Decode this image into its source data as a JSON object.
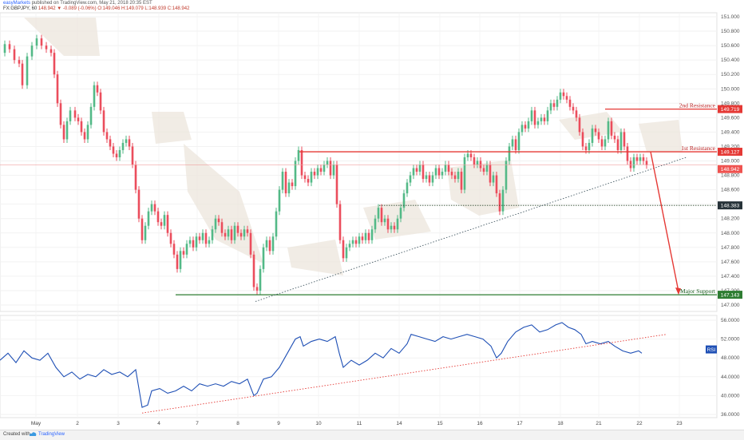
{
  "header": {
    "publisher_user": "easyMarkets",
    "publisher_rest": "published on TradingView.com, May 21, 2018 20:35 EST",
    "symbol": "FX:GBPJPY, 60",
    "last": "148.942",
    "change": "-0.089 (-0.06%)",
    "o": "O:149.046",
    "h": "H:149.079",
    "l": "L:148.939",
    "c": "C:148.942"
  },
  "price_axis": {
    "ticks": [
      "151.000",
      "150.800",
      "150.600",
      "150.400",
      "150.200",
      "150.000",
      "149.800",
      "149.600",
      "149.400",
      "149.200",
      "149.000",
      "148.800",
      "148.600",
      "148.400",
      "148.200",
      "148.000",
      "147.800",
      "147.600",
      "147.400",
      "147.200",
      "147.000"
    ]
  },
  "rsi_axis": {
    "ticks": [
      "56.0000",
      "52.0000",
      "48.0000",
      "44.0000",
      "40.0000",
      "36.0000"
    ]
  },
  "time_axis": {
    "ticks": [
      "May",
      "2",
      "3",
      "4",
      "7",
      "8",
      "9",
      "10",
      "11",
      "14",
      "15",
      "16",
      "17",
      "18",
      "21",
      "22",
      "23"
    ]
  },
  "price_labels": {
    "second_resistance": "149.719",
    "first_resistance": "149.127",
    "current": "148.942",
    "mid_level": "148.383",
    "major_support": "147.143"
  },
  "annotations": {
    "second_resistance": "2nd Resistance",
    "first_resistance": "1st Resistance",
    "major_support": "Major Support"
  },
  "rsi_badge": "RSI",
  "footer": {
    "created": "Created with",
    "brand": "TradingView"
  },
  "colors": {
    "up": "#53b987",
    "down": "#eb4d5c",
    "resistance": "#e53935",
    "support": "#2e7d32",
    "rsi": "#1e4fb5",
    "trend": "#455a64",
    "cloud": "#ece6dc"
  },
  "chart_data": {
    "type": "candlestick",
    "symbol": "FX:GBPJPY",
    "interval": "60",
    "ylim": [
      147.0,
      151.0
    ],
    "rsi_ylim": [
      36.0,
      56.0
    ],
    "levels": [
      {
        "name": "2nd Resistance",
        "value": 149.719
      },
      {
        "name": "1st Resistance",
        "value": 149.127
      },
      {
        "name": "Last price",
        "value": 148.942
      },
      {
        "value": 148.383
      },
      {
        "name": "Major Support",
        "value": 147.143
      }
    ],
    "price_path": [
      [
        0,
        150.5
      ],
      [
        6,
        150.62
      ],
      [
        12,
        150.55
      ],
      [
        18,
        150.4
      ],
      [
        24,
        150.35
      ],
      [
        28,
        150.05
      ],
      [
        34,
        150.45
      ],
      [
        40,
        150.6
      ],
      [
        46,
        150.7
      ],
      [
        52,
        150.6
      ],
      [
        58,
        150.55
      ],
      [
        64,
        150.5
      ],
      [
        68,
        150.2
      ],
      [
        72,
        149.8
      ],
      [
        76,
        149.5
      ],
      [
        80,
        149.3
      ],
      [
        84,
        149.55
      ],
      [
        88,
        149.7
      ],
      [
        94,
        149.6
      ],
      [
        98,
        149.55
      ],
      [
        102,
        149.4
      ],
      [
        106,
        149.3
      ],
      [
        110,
        149.5
      ],
      [
        114,
        149.75
      ],
      [
        118,
        150.05
      ],
      [
        122,
        149.95
      ],
      [
        126,
        149.7
      ],
      [
        130,
        149.4
      ],
      [
        134,
        149.3
      ],
      [
        138,
        149.2
      ],
      [
        142,
        149.1
      ],
      [
        146,
        149.05
      ],
      [
        150,
        149.15
      ],
      [
        154,
        149.25
      ],
      [
        158,
        149.3
      ],
      [
        162,
        149.2
      ],
      [
        166,
        148.95
      ],
      [
        170,
        148.6
      ],
      [
        174,
        148.2
      ],
      [
        178,
        147.9
      ],
      [
        182,
        148.1
      ],
      [
        186,
        148.3
      ],
      [
        190,
        148.4
      ],
      [
        194,
        148.3
      ],
      [
        198,
        148.15
      ],
      [
        202,
        148.1
      ],
      [
        206,
        148.25
      ],
      [
        210,
        148.0
      ],
      [
        214,
        147.85
      ],
      [
        218,
        147.7
      ],
      [
        222,
        147.5
      ],
      [
        226,
        147.75
      ],
      [
        230,
        147.7
      ],
      [
        234,
        147.85
      ],
      [
        238,
        147.9
      ],
      [
        242,
        147.8
      ],
      [
        246,
        147.95
      ],
      [
        250,
        147.9
      ],
      [
        254,
        148.0
      ],
      [
        258,
        147.85
      ],
      [
        262,
        147.9
      ],
      [
        266,
        148.05
      ],
      [
        270,
        148.2
      ],
      [
        274,
        148.15
      ],
      [
        278,
        148.0
      ],
      [
        282,
        147.95
      ],
      [
        286,
        148.05
      ],
      [
        290,
        147.9
      ],
      [
        294,
        148.1
      ],
      [
        298,
        148.0
      ],
      [
        302,
        147.95
      ],
      [
        306,
        148.05
      ],
      [
        310,
        148.0
      ],
      [
        314,
        147.7
      ],
      [
        318,
        147.25
      ],
      [
        322,
        147.2
      ],
      [
        326,
        147.5
      ],
      [
        330,
        147.8
      ],
      [
        334,
        147.9
      ],
      [
        338,
        147.75
      ],
      [
        342,
        147.95
      ],
      [
        346,
        148.3
      ],
      [
        350,
        148.6
      ],
      [
        354,
        148.85
      ],
      [
        358,
        148.55
      ],
      [
        362,
        148.7
      ],
      [
        366,
        148.65
      ],
      [
        370,
        149.0
      ],
      [
        374,
        149.15
      ],
      [
        378,
        148.8
      ],
      [
        382,
        148.75
      ],
      [
        386,
        148.7
      ],
      [
        390,
        148.85
      ],
      [
        394,
        148.8
      ],
      [
        398,
        148.9
      ],
      [
        402,
        148.85
      ],
      [
        406,
        148.95
      ],
      [
        410,
        149.0
      ],
      [
        414,
        148.8
      ],
      [
        418,
        148.95
      ],
      [
        422,
        148.4
      ],
      [
        426,
        147.9
      ],
      [
        430,
        147.65
      ],
      [
        434,
        147.8
      ],
      [
        438,
        147.85
      ],
      [
        442,
        147.9
      ],
      [
        446,
        147.85
      ],
      [
        450,
        147.95
      ],
      [
        454,
        147.9
      ],
      [
        458,
        148.0
      ],
      [
        462,
        147.9
      ],
      [
        466,
        148.05
      ],
      [
        470,
        148.2
      ],
      [
        474,
        148.35
      ],
      [
        478,
        148.15
      ],
      [
        482,
        148.2
      ],
      [
        486,
        148.05
      ],
      [
        490,
        148.1
      ],
      [
        494,
        148.05
      ],
      [
        498,
        148.2
      ],
      [
        502,
        148.35
      ],
      [
        506,
        148.55
      ],
      [
        510,
        148.7
      ],
      [
        514,
        148.8
      ],
      [
        518,
        148.9
      ],
      [
        522,
        148.85
      ],
      [
        526,
        148.95
      ],
      [
        530,
        148.75
      ],
      [
        534,
        148.8
      ],
      [
        538,
        148.7
      ],
      [
        542,
        148.8
      ],
      [
        546,
        148.9
      ],
      [
        550,
        148.8
      ],
      [
        554,
        148.85
      ],
      [
        558,
        148.95
      ],
      [
        562,
        148.85
      ],
      [
        566,
        148.8
      ],
      [
        570,
        148.75
      ],
      [
        574,
        148.85
      ],
      [
        578,
        148.6
      ],
      [
        582,
        149.05
      ],
      [
        586,
        149.1
      ],
      [
        590,
        149.05
      ],
      [
        594,
        148.95
      ],
      [
        598,
        149.0
      ],
      [
        602,
        148.9
      ],
      [
        606,
        148.85
      ],
      [
        610,
        148.95
      ],
      [
        614,
        148.7
      ],
      [
        618,
        148.8
      ],
      [
        622,
        148.55
      ],
      [
        626,
        148.3
      ],
      [
        630,
        148.6
      ],
      [
        634,
        149.0
      ],
      [
        638,
        149.2
      ],
      [
        642,
        149.3
      ],
      [
        646,
        149.15
      ],
      [
        650,
        149.4
      ],
      [
        654,
        149.5
      ],
      [
        658,
        149.45
      ],
      [
        662,
        149.55
      ],
      [
        666,
        149.7
      ],
      [
        670,
        149.5
      ],
      [
        674,
        149.55
      ],
      [
        678,
        149.6
      ],
      [
        682,
        149.55
      ],
      [
        686,
        149.7
      ],
      [
        690,
        149.8
      ],
      [
        694,
        149.75
      ],
      [
        698,
        149.85
      ],
      [
        702,
        149.95
      ],
      [
        706,
        149.9
      ],
      [
        710,
        149.85
      ],
      [
        714,
        149.75
      ],
      [
        718,
        149.7
      ],
      [
        722,
        149.6
      ],
      [
        726,
        149.4
      ],
      [
        730,
        149.2
      ],
      [
        734,
        149.15
      ],
      [
        738,
        149.25
      ],
      [
        742,
        149.45
      ],
      [
        746,
        149.4
      ],
      [
        750,
        149.3
      ],
      [
        754,
        149.2
      ],
      [
        758,
        149.3
      ],
      [
        762,
        149.55
      ],
      [
        766,
        149.35
      ],
      [
        770,
        149.3
      ],
      [
        774,
        149.15
      ],
      [
        778,
        149.4
      ],
      [
        782,
        149.2
      ],
      [
        786,
        149.0
      ],
      [
        790,
        148.9
      ],
      [
        794,
        149.05
      ],
      [
        798,
        149.0
      ],
      [
        802,
        149.05
      ],
      [
        806,
        149.0
      ],
      [
        810,
        148.94
      ]
    ],
    "rsi_path": [
      [
        0,
        47.5
      ],
      [
        10,
        49.0
      ],
      [
        20,
        47.0
      ],
      [
        30,
        49.5
      ],
      [
        40,
        48.0
      ],
      [
        50,
        47.5
      ],
      [
        60,
        49.0
      ],
      [
        70,
        46.0
      ],
      [
        80,
        44.0
      ],
      [
        90,
        45.0
      ],
      [
        100,
        43.5
      ],
      [
        110,
        44.5
      ],
      [
        120,
        44.0
      ],
      [
        130,
        45.5
      ],
      [
        140,
        44.5
      ],
      [
        150,
        45.0
      ],
      [
        160,
        44.0
      ],
      [
        170,
        45.5
      ],
      [
        178,
        37.5
      ],
      [
        185,
        38.0
      ],
      [
        190,
        41.0
      ],
      [
        200,
        41.5
      ],
      [
        210,
        40.5
      ],
      [
        220,
        41.0
      ],
      [
        230,
        42.0
      ],
      [
        240,
        41.0
      ],
      [
        250,
        42.5
      ],
      [
        260,
        42.0
      ],
      [
        270,
        42.5
      ],
      [
        280,
        42.0
      ],
      [
        290,
        43.0
      ],
      [
        300,
        42.5
      ],
      [
        310,
        43.5
      ],
      [
        318,
        40.0
      ],
      [
        322,
        40.5
      ],
      [
        330,
        43.5
      ],
      [
        340,
        44.0
      ],
      [
        350,
        46.0
      ],
      [
        360,
        49.0
      ],
      [
        370,
        52.0
      ],
      [
        376,
        52.5
      ],
      [
        380,
        50.5
      ],
      [
        390,
        51.5
      ],
      [
        400,
        52.0
      ],
      [
        410,
        51.5
      ],
      [
        420,
        52.5
      ],
      [
        425,
        49.0
      ],
      [
        430,
        46.0
      ],
      [
        440,
        47.5
      ],
      [
        450,
        46.5
      ],
      [
        460,
        47.5
      ],
      [
        470,
        49.0
      ],
      [
        480,
        48.0
      ],
      [
        490,
        50.0
      ],
      [
        500,
        49.0
      ],
      [
        510,
        51.0
      ],
      [
        515,
        53.0
      ],
      [
        525,
        52.5
      ],
      [
        535,
        52.0
      ],
      [
        545,
        51.5
      ],
      [
        555,
        52.5
      ],
      [
        565,
        52.0
      ],
      [
        575,
        52.5
      ],
      [
        585,
        53.0
      ],
      [
        595,
        52.5
      ],
      [
        605,
        52.0
      ],
      [
        615,
        50.5
      ],
      [
        622,
        48.0
      ],
      [
        628,
        49.0
      ],
      [
        636,
        51.5
      ],
      [
        646,
        53.5
      ],
      [
        656,
        54.5
      ],
      [
        666,
        55.0
      ],
      [
        676,
        53.5
      ],
      [
        686,
        54.0
      ],
      [
        696,
        55.0
      ],
      [
        704,
        55.5
      ],
      [
        712,
        54.5
      ],
      [
        720,
        54.0
      ],
      [
        728,
        53.0
      ],
      [
        734,
        51.0
      ],
      [
        742,
        51.5
      ],
      [
        752,
        51.0
      ],
      [
        762,
        51.5
      ],
      [
        770,
        50.5
      ],
      [
        780,
        49.5
      ],
      [
        790,
        49.0
      ],
      [
        800,
        49.5
      ],
      [
        804,
        49.0
      ]
    ],
    "rsi_badge_value": "RSI"
  }
}
